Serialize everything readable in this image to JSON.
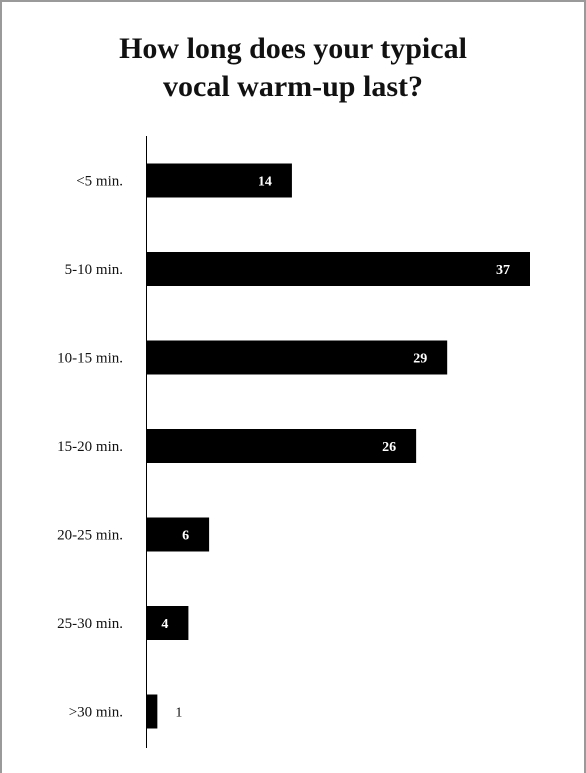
{
  "chart_data": {
    "type": "bar",
    "orientation": "horizontal",
    "title_lines": [
      "How long does your typical",
      "vocal warm-up last?"
    ],
    "categories": [
      "<5 min.",
      "5-10 min.",
      "10-15 min.",
      "15-20 min.",
      "20-25 min.",
      "25-30 min.",
      ">30 min."
    ],
    "values": [
      14,
      37,
      29,
      26,
      6,
      4,
      1
    ],
    "xlim": [
      0,
      37
    ],
    "grid": false,
    "bar_color": "#000000",
    "label_color_inside": "#ffffff",
    "label_color_outside": "#111111"
  }
}
